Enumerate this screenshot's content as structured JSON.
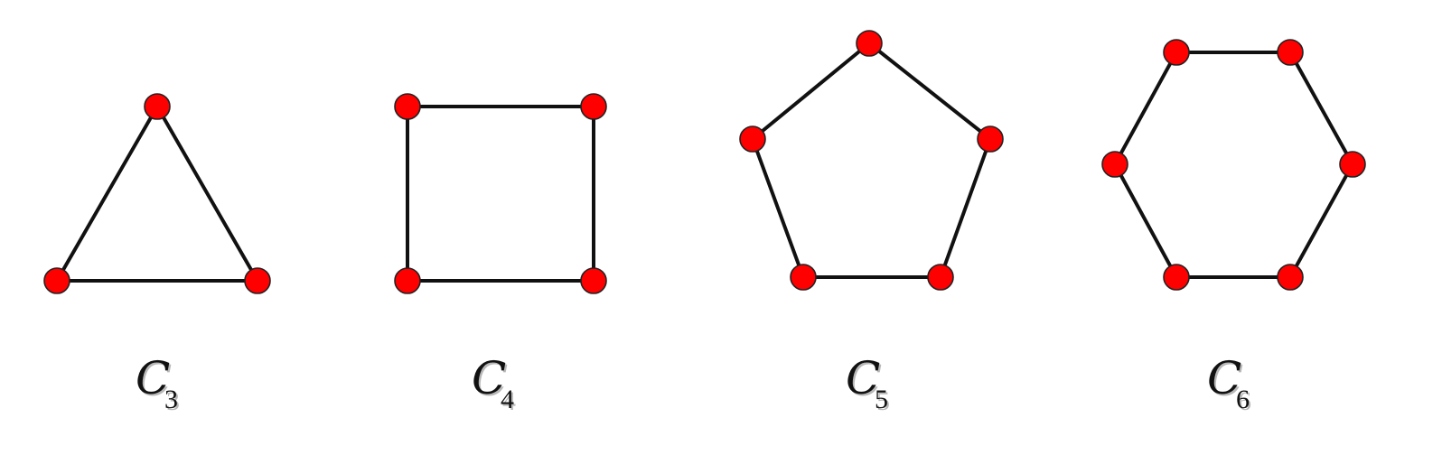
{
  "graphs": [
    {
      "label_letter": "C",
      "label_subscript": "3",
      "vertex_count": 3
    },
    {
      "label_letter": "C",
      "label_subscript": "4",
      "vertex_count": 4
    },
    {
      "label_letter": "C",
      "label_subscript": "5",
      "vertex_count": 5
    },
    {
      "label_letter": "C",
      "label_subscript": "6",
      "vertex_count": 6
    }
  ],
  "colors": {
    "vertex_fill": "#ff0000",
    "vertex_stroke": "#222222",
    "edge": "#111111",
    "label": "#111111"
  }
}
